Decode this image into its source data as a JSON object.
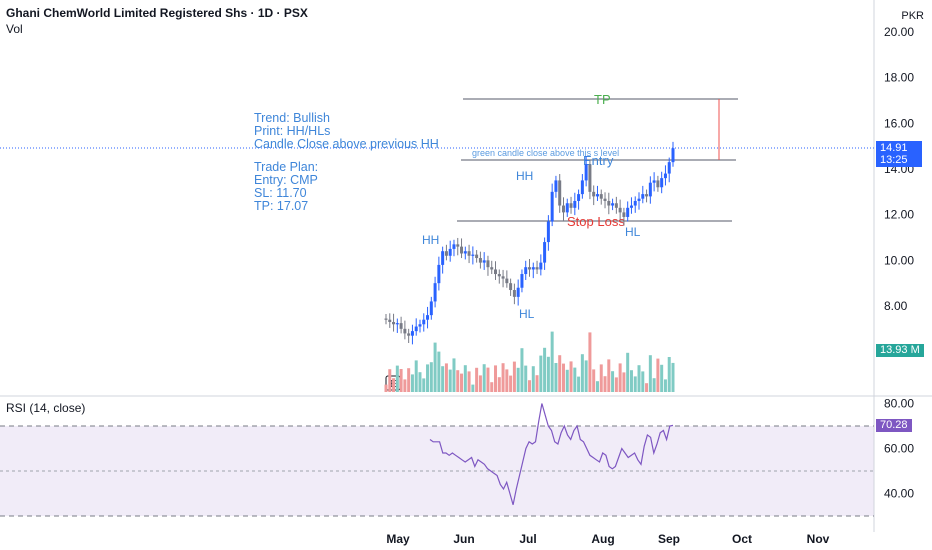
{
  "header": {
    "title": "Ghani ChemWorld Limited Registered Shs · 1D · PSX",
    "vol_label": "Vol",
    "currency": "PKR"
  },
  "notes": {
    "trend": "Trend: Bullish",
    "print": "Print: HH/HLs",
    "candle": "Candle Close above previous HH",
    "plan_title": "Trade Plan:",
    "entry": "Entry: CMP",
    "sl": "SL: 11.70",
    "tp": "TP: 17.07"
  },
  "labels": {
    "tp": "TP",
    "entry": "Entry",
    "stop_loss": "Stop Loss",
    "green_note": "green candle close above this s level",
    "hh1": "HH",
    "hh2": "HH",
    "hl1": "HL",
    "hl2": "HL",
    "e_marker": "E"
  },
  "price_tag": {
    "price": "14.91",
    "timer": "13:25"
  },
  "volume_tag": "13.93 M",
  "rsi": {
    "label": "RSI (14, close)",
    "value": "70.28"
  },
  "colors": {
    "up": "#2962ff",
    "down": "#787b86",
    "vol_up": "#80cbc4",
    "vol_down": "#ef9a9a",
    "rsi_line": "#7e57c2",
    "tp": "#4caf50",
    "sl": "#e53935"
  },
  "chart_data": [
    {
      "type": "candlestick",
      "title": "Ghani ChemWorld Limited Registered Shs · 1D · PSX",
      "ylabel": "PKR",
      "ylim": [
        6,
        21
      ],
      "y_ticks": [
        "8.00",
        "10.00",
        "12.00",
        "14.00",
        "16.00",
        "18.00",
        "20.00"
      ],
      "x_ticks": [
        "May",
        "Jun",
        "Jul",
        "Aug",
        "Sep",
        "Oct",
        "Nov"
      ],
      "levels": {
        "tp": 17.07,
        "entry": 14.4,
        "stop_loss": 11.7,
        "last": 14.91
      },
      "close": [
        7.4,
        7.3,
        7.2,
        7.25,
        7.0,
        6.8,
        6.7,
        6.9,
        7.1,
        7.2,
        7.4,
        7.6,
        8.2,
        9.0,
        9.8,
        10.4,
        10.2,
        10.5,
        10.7,
        10.6,
        10.3,
        10.4,
        10.2,
        10.25,
        10.1,
        9.9,
        10.0,
        9.7,
        9.6,
        9.4,
        9.3,
        9.2,
        9.0,
        8.7,
        8.4,
        8.8,
        9.4,
        9.7,
        9.6,
        9.7,
        9.6,
        9.9,
        10.8,
        11.7,
        13.0,
        13.5,
        12.4,
        12.1,
        12.5,
        12.3,
        12.6,
        12.9,
        13.5,
        14.2,
        13.0,
        12.8,
        12.9,
        12.7,
        12.6,
        12.4,
        12.5,
        12.3,
        12.1,
        11.9,
        12.3,
        12.4,
        12.6,
        12.7,
        12.9,
        12.8,
        13.4,
        13.5,
        13.2,
        13.6,
        13.8,
        14.3,
        14.91
      ],
      "volume_label": "13.93 M"
    },
    {
      "type": "line",
      "title": "RSI (14, close)",
      "ylim": [
        30,
        85
      ],
      "y_ticks": [
        "40.00",
        "60.00",
        "80.00"
      ],
      "bands": [
        70,
        50,
        30
      ],
      "values": [
        64,
        63,
        63,
        63,
        58,
        58,
        57,
        58,
        57,
        56,
        55,
        54,
        55,
        56,
        52,
        55,
        54,
        53,
        51,
        50,
        49,
        48,
        44,
        42,
        45,
        40,
        35,
        42,
        48,
        54,
        60,
        63,
        62,
        63,
        72,
        80,
        75,
        70,
        68,
        63,
        62,
        67,
        70,
        66,
        64,
        68,
        70,
        64,
        63,
        60,
        57,
        56,
        55,
        54,
        58,
        57,
        52,
        51,
        52,
        56,
        60,
        58,
        56,
        57,
        58,
        55,
        53,
        61,
        66,
        65,
        58,
        62,
        67,
        68,
        64,
        70,
        70.28
      ],
      "last_value": "70.28"
    }
  ]
}
